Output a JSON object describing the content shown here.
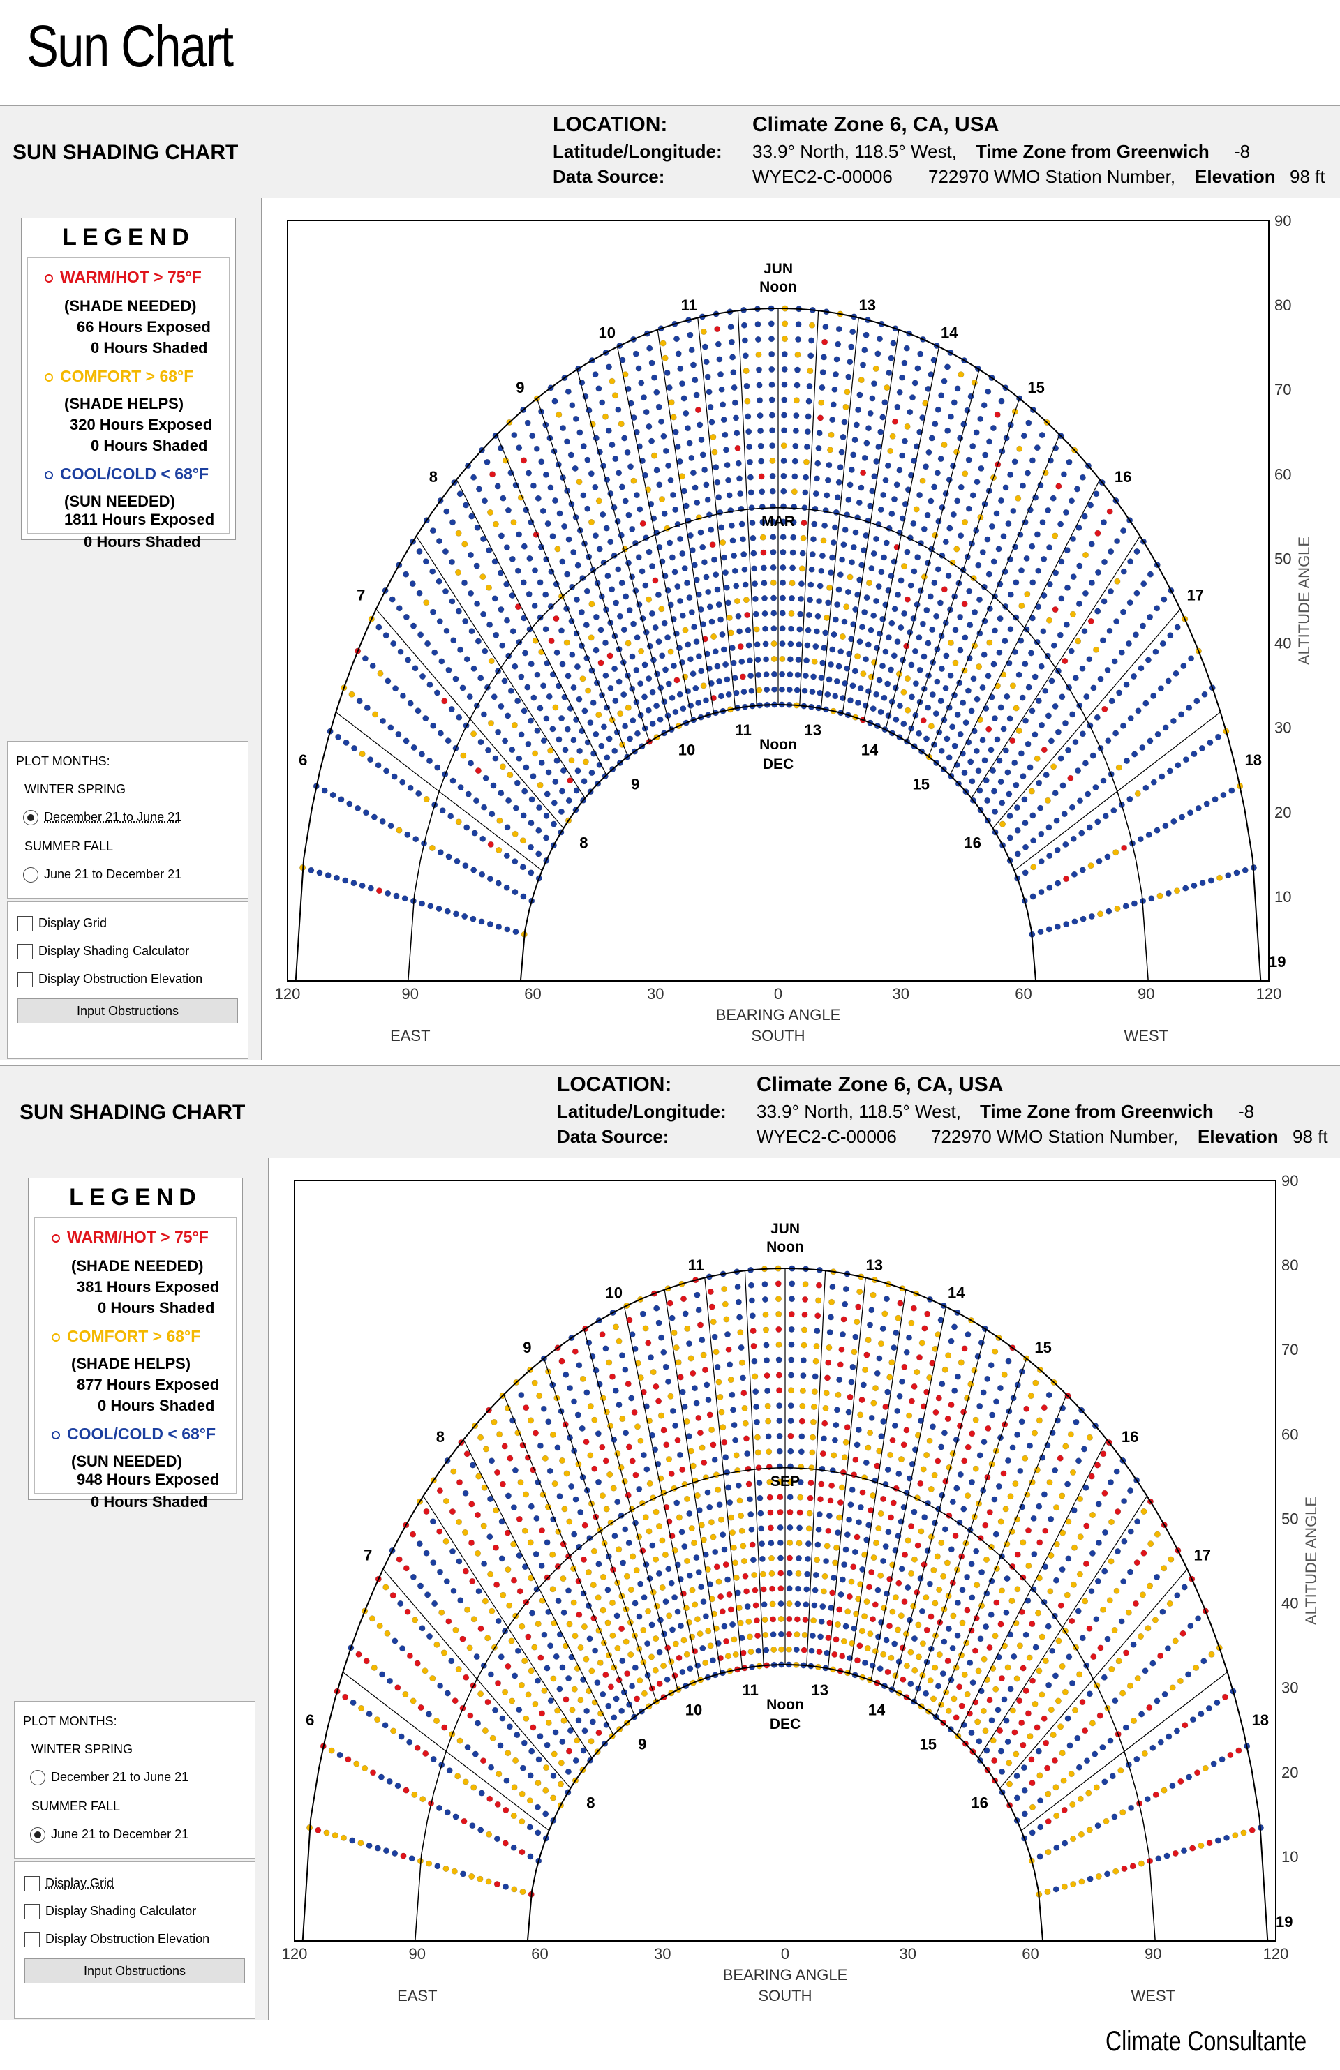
{
  "page_title": "Sun Chart",
  "footer": "Climate Consultante",
  "colors": {
    "warm": "#e0141b",
    "comfort": "#f4b800",
    "cool": "#1c3f9f",
    "panel_bg": "#f0f0f0"
  },
  "header": {
    "title": "SUN SHADING CHART",
    "location_label": "LOCATION:",
    "location_value": "Climate Zone 6, CA, USA",
    "latlon_label": "Latitude/Longitude:",
    "latlon_value": "33.9° North, 118.5° West,",
    "tz_label": "Time Zone from Greenwich",
    "tz_value": "-8",
    "source_label": "Data Source:",
    "source_id": "WYEC2-C-00006",
    "station_value": "722970 WMO Station Number,",
    "elev_label": "Elevation",
    "elev_value": "98 ft"
  },
  "legend": {
    "heading": "LEGEND",
    "warm_label": "WARM/HOT  > 75°F",
    "warm_sub": "(SHADE NEEDED)",
    "comfort_label": "COMFORT  > 68°F",
    "comfort_sub": "(SHADE HELPS)",
    "cool_label": "COOL/COLD  < 68°F",
    "cool_sub": "(SUN NEEDED)"
  },
  "controls": {
    "plot_months_label": "PLOT MONTHS:",
    "winter_spring_label": "WINTER SPRING",
    "winter_spring_range": "December 21 to June 21",
    "summer_fall_label": "SUMMER FALL",
    "summer_fall_range": "June 21 to December 21",
    "display_grid": "Display Grid",
    "display_shading": "Display Shading Calculator",
    "display_obstruction": "Display Obstruction Elevation",
    "input_obstructions": "Input Obstructions"
  },
  "panels": [
    {
      "legend_counts": {
        "warm_exposed": "66 Hours Exposed",
        "warm_shaded": "0 Hours Shaded",
        "comfort_exposed": "320 Hours Exposed",
        "comfort_shaded": "0 Hours Shaded",
        "cool_exposed": "1811 Hours Exposed",
        "cool_shaded": "0 Hours Shaded"
      },
      "selected_period": "winter_spring",
      "chart_data": {
        "type": "scatter",
        "subtype": "sun-path-polar",
        "title": "SUN SHADING CHART",
        "xlabel": "BEARING ANGLE",
        "ylabel": "ALTITUDE ANGLE",
        "x_ticks": [
          "120",
          "90",
          "60",
          "30",
          "0",
          "30",
          "60",
          "90",
          "120"
        ],
        "y_ticks": [
          "10",
          "20",
          "30",
          "40",
          "50",
          "60",
          "70",
          "80",
          "90"
        ],
        "xlim": [
          -120,
          120
        ],
        "ylim": [
          0,
          90
        ],
        "direction_labels": [
          "EAST",
          "SOUTH",
          "WEST"
        ],
        "hour_labels": [
          "6",
          "7",
          "8",
          "9",
          "10",
          "11",
          "13",
          "14",
          "15",
          "16",
          "17",
          "18",
          "19"
        ],
        "inner_hour_labels": [
          "8",
          "9",
          "10",
          "11",
          "13",
          "14",
          "15",
          "16"
        ],
        "top_label": [
          "JUN",
          "Noon"
        ],
        "mid_label": "MAR",
        "bottom_label": [
          "Noon",
          "DEC"
        ],
        "outer_arc_peak_altitude": 79.6,
        "inner_arc_peak_altitude": 32.7,
        "mid_arc_peak_altitude": 56,
        "series": [
          {
            "name": "WARM/HOT > 75°F",
            "hours": 66
          },
          {
            "name": "COMFORT > 68°F",
            "hours": 320
          },
          {
            "name": "COOL/COLD < 68°F",
            "hours": 1811
          }
        ],
        "color_probabilities": {
          "warm": 0.03,
          "comfort": 0.12,
          "cool": 0.85
        }
      }
    },
    {
      "legend_counts": {
        "warm_exposed": "381 Hours Exposed",
        "warm_shaded": "0 Hours Shaded",
        "comfort_exposed": "877 Hours Exposed",
        "comfort_shaded": "0 Hours Shaded",
        "cool_exposed": "948 Hours Exposed",
        "cool_shaded": "0 Hours Shaded"
      },
      "selected_period": "summer_fall",
      "chart_data": {
        "type": "scatter",
        "subtype": "sun-path-polar",
        "title": "SUN SHADING CHART",
        "xlabel": "BEARING ANGLE",
        "ylabel": "ALTITUDE ANGLE",
        "x_ticks": [
          "120",
          "90",
          "60",
          "30",
          "0",
          "30",
          "60",
          "90",
          "120"
        ],
        "y_ticks": [
          "10",
          "20",
          "30",
          "40",
          "50",
          "60",
          "70",
          "80",
          "90"
        ],
        "xlim": [
          -120,
          120
        ],
        "ylim": [
          0,
          90
        ],
        "direction_labels": [
          "EAST",
          "SOUTH",
          "WEST"
        ],
        "hour_labels": [
          "6",
          "7",
          "8",
          "9",
          "10",
          "11",
          "13",
          "14",
          "15",
          "16",
          "17",
          "18",
          "19"
        ],
        "inner_hour_labels": [
          "8",
          "9",
          "10",
          "11",
          "13",
          "14",
          "15",
          "16"
        ],
        "top_label": [
          "JUN",
          "Noon"
        ],
        "mid_label": "SEP",
        "bottom_label": [
          "Noon",
          "DEC"
        ],
        "outer_arc_peak_altitude": 79.6,
        "inner_arc_peak_altitude": 32.7,
        "mid_arc_peak_altitude": 56,
        "series": [
          {
            "name": "WARM/HOT > 75°F",
            "hours": 381
          },
          {
            "name": "COMFORT > 68°F",
            "hours": 877
          },
          {
            "name": "COOL/COLD < 68°F",
            "hours": 948
          }
        ],
        "color_probabilities": {
          "warm": 0.22,
          "comfort": 0.38,
          "cool": 0.4
        }
      }
    }
  ]
}
